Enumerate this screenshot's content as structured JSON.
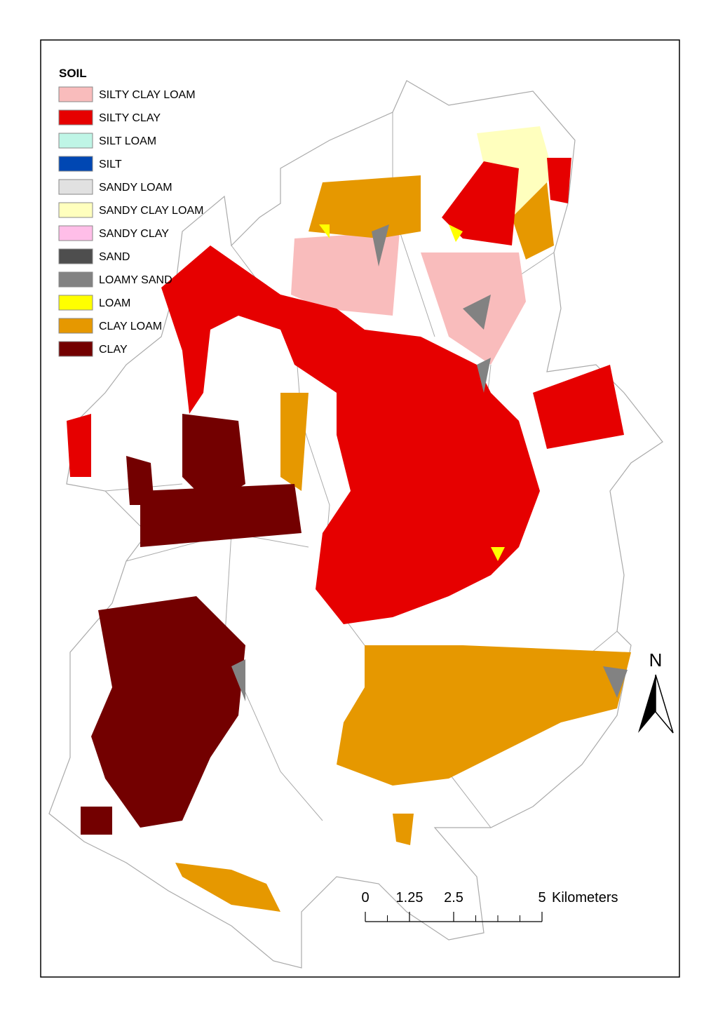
{
  "legend": {
    "title": "SOIL",
    "items": [
      {
        "label": "SILTY CLAY LOAM",
        "color": "#f9bcbc"
      },
      {
        "label": "SILTY CLAY",
        "color": "#e60000"
      },
      {
        "label": "SILT LOAM",
        "color": "#bff5e6"
      },
      {
        "label": "SILT",
        "color": "#0047b3"
      },
      {
        "label": "SANDY LOAM",
        "color": "#e1e1e1"
      },
      {
        "label": "SANDY CLAY LOAM",
        "color": "#ffffbe"
      },
      {
        "label": "SANDY CLAY",
        "color": "#ffbee8"
      },
      {
        "label": "SAND",
        "color": "#4e4e4e"
      },
      {
        "label": "LOAMY SAND",
        "color": "#828282"
      },
      {
        "label": "LOAM",
        "color": "#ffff00"
      },
      {
        "label": "CLAY LOAM",
        "color": "#e69800"
      },
      {
        "label": "CLAY",
        "color": "#730000"
      }
    ]
  },
  "north_arrow": {
    "label": "N"
  },
  "scale_bar": {
    "ticks": [
      0,
      1.25,
      2.5,
      5
    ],
    "unit": "Kilometers"
  }
}
